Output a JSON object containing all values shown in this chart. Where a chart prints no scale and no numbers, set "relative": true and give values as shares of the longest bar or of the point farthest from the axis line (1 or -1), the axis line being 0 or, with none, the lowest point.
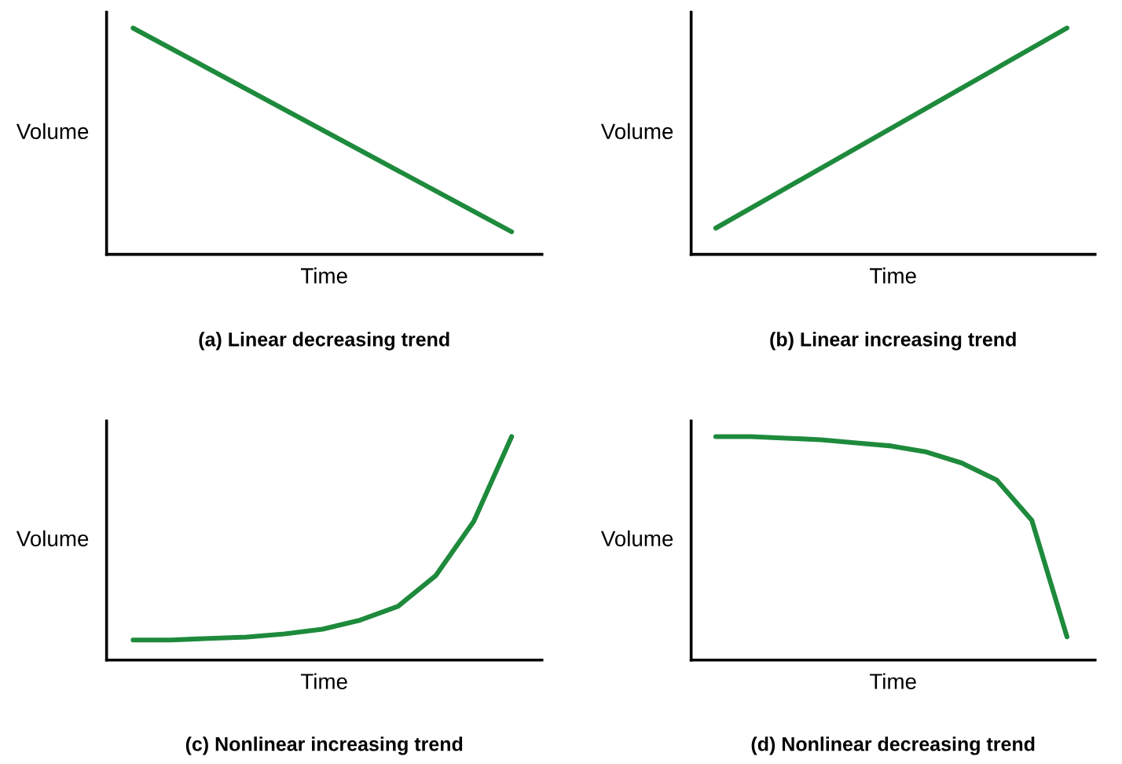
{
  "chart_data": [
    {
      "type": "line",
      "title": "(a) Linear decreasing trend",
      "xlabel": "Time",
      "ylabel": "Volume",
      "relative": true,
      "categories": [
        null,
        null
      ],
      "series": [
        {
          "color": "#1e8a3c",
          "values": [
            1,
            0.1
          ]
        }
      ],
      "tick_labels": false,
      "grid": false,
      "legend": false
    },
    {
      "type": "line",
      "title": "(b) Linear increasing trend",
      "xlabel": "Time",
      "ylabel": "Volume",
      "relative": true,
      "categories": [
        null,
        null
      ],
      "series": [
        {
          "color": "#1e8a3c",
          "values": [
            0.116,
            1
          ]
        }
      ],
      "tick_labels": false,
      "grid": false,
      "legend": false
    },
    {
      "type": "line",
      "title": "(c) Nonlinear increasing trend",
      "xlabel": "Time",
      "ylabel": "Volume",
      "relative": true,
      "categories": [
        null,
        null,
        null,
        null,
        null,
        null,
        null,
        null,
        null,
        null,
        null
      ],
      "series": [
        {
          "color": "#1e8a3c",
          "values": [
            0.09,
            0.09,
            0.097,
            0.103,
            0.117,
            0.138,
            0.179,
            0.241,
            0.379,
            0.621,
            1
          ]
        }
      ],
      "tick_labels": false,
      "grid": false,
      "legend": false
    },
    {
      "type": "line",
      "title": "(d) Nonlinear decreasing trend",
      "xlabel": "Time",
      "ylabel": "Volume",
      "relative": true,
      "categories": [
        null,
        null,
        null,
        null,
        null,
        null,
        null,
        null,
        null,
        null,
        null
      ],
      "series": [
        {
          "color": "#1e8a3c",
          "values": [
            1,
            1,
            0.993,
            0.986,
            0.972,
            0.958,
            0.931,
            0.882,
            0.806,
            0.625,
            0.104
          ]
        }
      ],
      "tick_labels": false,
      "grid": false,
      "legend": false
    }
  ]
}
